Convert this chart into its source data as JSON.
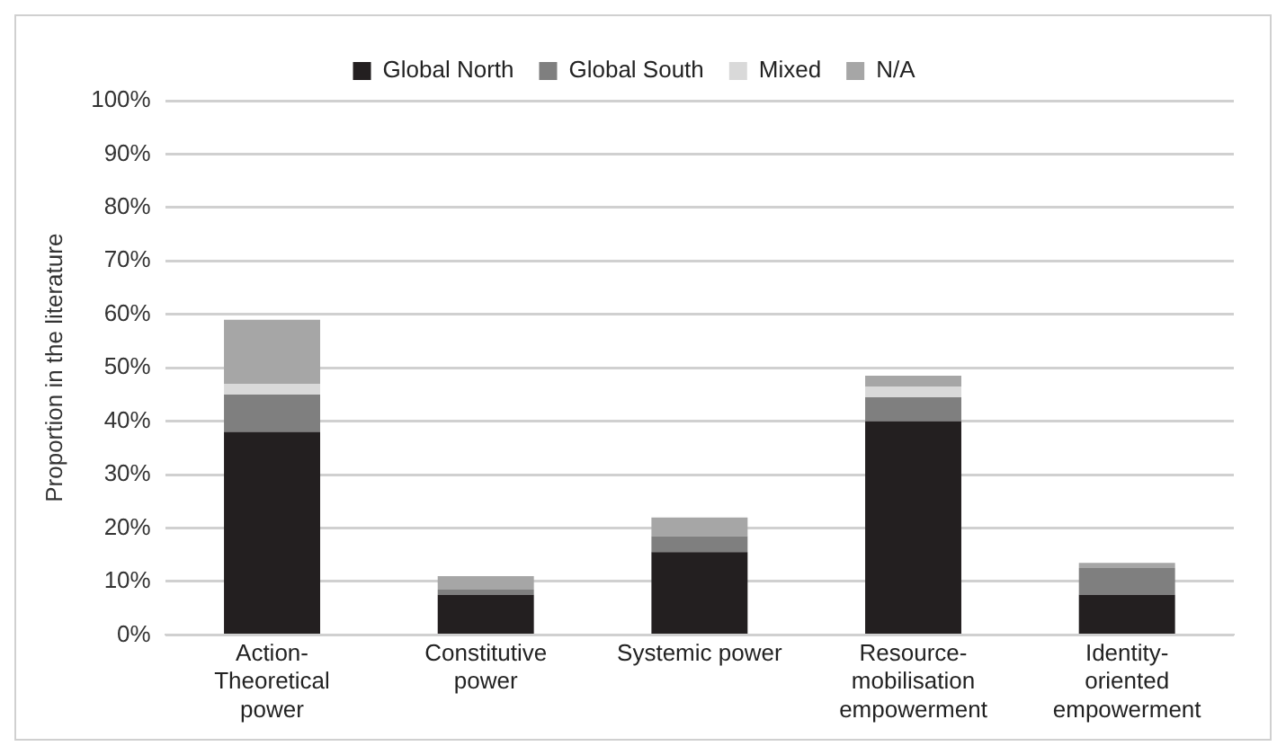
{
  "chart_data": {
    "type": "bar",
    "stacked": true,
    "ylabel": "Proportion in the literature",
    "categories": [
      "Action-\nTheoretical\npower",
      "Constitutive\npower",
      "Systemic power",
      "Resource-\nmobilisation\nempowerment",
      "Identity-\noriented\nempowerment"
    ],
    "series": [
      {
        "name": "Global North",
        "color": "#231f20",
        "values": [
          38,
          7.5,
          15.5,
          40,
          7.5
        ]
      },
      {
        "name": "Global South",
        "color": "#7f7f7f",
        "values": [
          7,
          1,
          3,
          4.5,
          5
        ]
      },
      {
        "name": "Mixed",
        "color": "#d9d9d9",
        "values": [
          2,
          0,
          0,
          2,
          0
        ]
      },
      {
        "name": "N/A",
        "color": "#a6a6a6",
        "values": [
          12,
          2.5,
          3.5,
          2,
          1
        ]
      }
    ],
    "ylim": [
      0,
      100
    ],
    "yticks": [
      {
        "value": 0,
        "label": "0%"
      },
      {
        "value": 10,
        "label": "10%"
      },
      {
        "value": 20,
        "label": "20%"
      },
      {
        "value": 30,
        "label": "30%"
      },
      {
        "value": 40,
        "label": "40%"
      },
      {
        "value": 50,
        "label": "50%"
      },
      {
        "value": 60,
        "label": "60%"
      },
      {
        "value": 70,
        "label": "70%"
      },
      {
        "value": 80,
        "label": "80%"
      },
      {
        "value": 90,
        "label": "90%"
      },
      {
        "value": 100,
        "label": "100%"
      }
    ],
    "grid": "y",
    "legend": "top"
  }
}
